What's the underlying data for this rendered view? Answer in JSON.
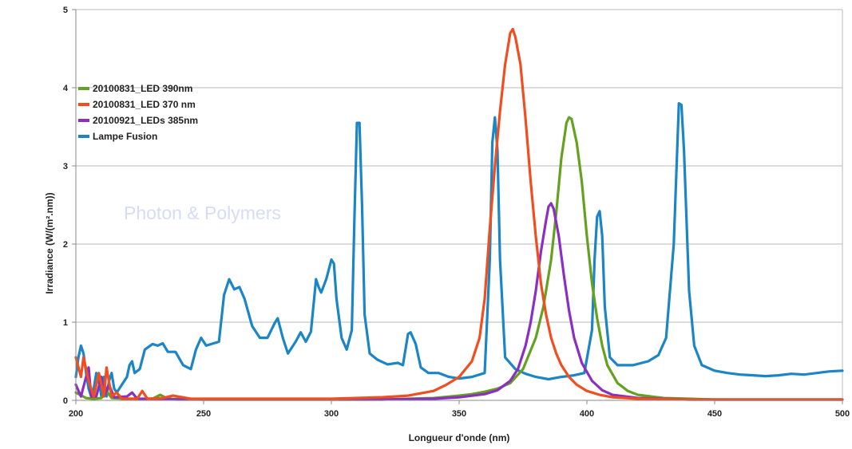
{
  "chart_data": {
    "type": "line",
    "title": "",
    "xlabel": "Longueur d'onde (nm)",
    "ylabel": "Irradiance (W/(m².nm))",
    "xlim": [
      200,
      500
    ],
    "ylim": [
      0,
      5
    ],
    "xticks": [
      200,
      250,
      300,
      350,
      400,
      450,
      500
    ],
    "yticks": [
      0,
      1,
      2,
      3,
      4,
      5
    ],
    "grid": true,
    "legend_position": "top-left",
    "watermark": "Photon & Polymers",
    "series": [
      {
        "name": "20100831_LED 390nm",
        "color": "#64a11f",
        "points": [
          [
            200,
            0.1
          ],
          [
            204,
            0.03
          ],
          [
            207,
            0.02
          ],
          [
            210,
            0.03
          ],
          [
            212,
            0.12
          ],
          [
            214,
            0.03
          ],
          [
            220,
            0.02
          ],
          [
            230,
            0.02
          ],
          [
            233,
            0.07
          ],
          [
            236,
            0.02
          ],
          [
            250,
            0.01
          ],
          [
            280,
            0.01
          ],
          [
            300,
            0.01
          ],
          [
            320,
            0.01
          ],
          [
            330,
            0.02
          ],
          [
            340,
            0.03
          ],
          [
            350,
            0.06
          ],
          [
            355,
            0.08
          ],
          [
            360,
            0.11
          ],
          [
            365,
            0.15
          ],
          [
            370,
            0.22
          ],
          [
            375,
            0.4
          ],
          [
            380,
            0.8
          ],
          [
            383,
            1.2
          ],
          [
            386,
            1.8
          ],
          [
            388,
            2.4
          ],
          [
            390,
            3.1
          ],
          [
            392,
            3.55
          ],
          [
            393,
            3.62
          ],
          [
            394,
            3.6
          ],
          [
            396,
            3.3
          ],
          [
            398,
            2.8
          ],
          [
            400,
            2.1
          ],
          [
            402,
            1.5
          ],
          [
            404,
            1.05
          ],
          [
            406,
            0.7
          ],
          [
            408,
            0.45
          ],
          [
            412,
            0.22
          ],
          [
            416,
            0.12
          ],
          [
            420,
            0.07
          ],
          [
            430,
            0.03
          ],
          [
            440,
            0.02
          ],
          [
            450,
            0.01
          ],
          [
            470,
            0.01
          ],
          [
            500,
            0.01
          ]
        ]
      },
      {
        "name": "20100831_LED 370 nm",
        "color": "#f04e1e",
        "points": [
          [
            200,
            0.55
          ],
          [
            202,
            0.3
          ],
          [
            203,
            0.55
          ],
          [
            205,
            0.25
          ],
          [
            207,
            0.05
          ],
          [
            209,
            0.35
          ],
          [
            211,
            0.05
          ],
          [
            212,
            0.42
          ],
          [
            214,
            0.05
          ],
          [
            216,
            0.1
          ],
          [
            218,
            0.02
          ],
          [
            224,
            0.02
          ],
          [
            226,
            0.12
          ],
          [
            228,
            0.02
          ],
          [
            234,
            0.03
          ],
          [
            238,
            0.06
          ],
          [
            245,
            0.02
          ],
          [
            260,
            0.02
          ],
          [
            280,
            0.02
          ],
          [
            300,
            0.02
          ],
          [
            320,
            0.04
          ],
          [
            330,
            0.06
          ],
          [
            340,
            0.12
          ],
          [
            345,
            0.2
          ],
          [
            350,
            0.3
          ],
          [
            355,
            0.5
          ],
          [
            358,
            0.8
          ],
          [
            360,
            1.3
          ],
          [
            362,
            2.2
          ],
          [
            364,
            3.0
          ],
          [
            366,
            3.7
          ],
          [
            368,
            4.3
          ],
          [
            370,
            4.7
          ],
          [
            371,
            4.75
          ],
          [
            372,
            4.65
          ],
          [
            374,
            4.3
          ],
          [
            376,
            3.6
          ],
          [
            378,
            2.8
          ],
          [
            380,
            2.1
          ],
          [
            382,
            1.5
          ],
          [
            384,
            1.1
          ],
          [
            386,
            0.8
          ],
          [
            388,
            0.6
          ],
          [
            390,
            0.45
          ],
          [
            393,
            0.3
          ],
          [
            396,
            0.2
          ],
          [
            400,
            0.12
          ],
          [
            405,
            0.07
          ],
          [
            410,
            0.04
          ],
          [
            420,
            0.02
          ],
          [
            440,
            0.01
          ],
          [
            500,
            0.01
          ]
        ]
      },
      {
        "name": "20100921_LEDs 385nm",
        "color": "#8b2fc1",
        "points": [
          [
            200,
            0.2
          ],
          [
            202,
            0.05
          ],
          [
            204,
            0.3
          ],
          [
            205,
            0.42
          ],
          [
            206,
            0.05
          ],
          [
            208,
            0.05
          ],
          [
            210,
            0.3
          ],
          [
            211,
            0.05
          ],
          [
            213,
            0.2
          ],
          [
            215,
            0.04
          ],
          [
            220,
            0.05
          ],
          [
            222,
            0.1
          ],
          [
            224,
            0.02
          ],
          [
            240,
            0.01
          ],
          [
            280,
            0.01
          ],
          [
            320,
            0.01
          ],
          [
            340,
            0.02
          ],
          [
            350,
            0.04
          ],
          [
            360,
            0.08
          ],
          [
            365,
            0.13
          ],
          [
            370,
            0.25
          ],
          [
            373,
            0.4
          ],
          [
            376,
            0.7
          ],
          [
            378,
            1.0
          ],
          [
            380,
            1.4
          ],
          [
            382,
            1.9
          ],
          [
            384,
            2.3
          ],
          [
            385,
            2.48
          ],
          [
            386,
            2.52
          ],
          [
            387,
            2.45
          ],
          [
            389,
            2.1
          ],
          [
            391,
            1.6
          ],
          [
            393,
            1.15
          ],
          [
            395,
            0.8
          ],
          [
            398,
            0.48
          ],
          [
            402,
            0.25
          ],
          [
            406,
            0.13
          ],
          [
            410,
            0.07
          ],
          [
            420,
            0.03
          ],
          [
            440,
            0.01
          ],
          [
            500,
            0.01
          ]
        ]
      },
      {
        "name": "Lampe Fusion",
        "color": "#1b85c6",
        "points": [
          [
            200,
            0.3
          ],
          [
            201,
            0.55
          ],
          [
            202,
            0.7
          ],
          [
            203,
            0.6
          ],
          [
            204,
            0.35
          ],
          [
            205,
            0.15
          ],
          [
            206,
            0.05
          ],
          [
            207,
            0.15
          ],
          [
            208,
            0.35
          ],
          [
            209,
            0.25
          ],
          [
            210,
            0.05
          ],
          [
            211,
            0.3
          ],
          [
            212,
            0.05
          ],
          [
            213,
            0.25
          ],
          [
            214,
            0.35
          ],
          [
            215,
            0.15
          ],
          [
            216,
            0.1
          ],
          [
            218,
            0.2
          ],
          [
            220,
            0.3
          ],
          [
            221,
            0.45
          ],
          [
            222,
            0.5
          ],
          [
            223,
            0.35
          ],
          [
            225,
            0.4
          ],
          [
            227,
            0.65
          ],
          [
            230,
            0.72
          ],
          [
            232,
            0.7
          ],
          [
            234,
            0.73
          ],
          [
            236,
            0.62
          ],
          [
            239,
            0.62
          ],
          [
            242,
            0.45
          ],
          [
            245,
            0.4
          ],
          [
            247,
            0.65
          ],
          [
            249,
            0.8
          ],
          [
            251,
            0.7
          ],
          [
            253,
            0.72
          ],
          [
            256,
            0.75
          ],
          [
            258,
            1.35
          ],
          [
            260,
            1.55
          ],
          [
            262,
            1.42
          ],
          [
            264,
            1.45
          ],
          [
            266,
            1.3
          ],
          [
            269,
            0.95
          ],
          [
            272,
            0.8
          ],
          [
            275,
            0.8
          ],
          [
            278,
            1.0
          ],
          [
            279,
            1.05
          ],
          [
            281,
            0.8
          ],
          [
            283,
            0.6
          ],
          [
            286,
            0.75
          ],
          [
            288,
            0.87
          ],
          [
            290,
            0.75
          ],
          [
            292,
            0.88
          ],
          [
            294,
            1.55
          ],
          [
            295,
            1.45
          ],
          [
            296,
            1.38
          ],
          [
            298,
            1.55
          ],
          [
            300,
            1.8
          ],
          [
            301,
            1.75
          ],
          [
            302,
            1.3
          ],
          [
            304,
            0.8
          ],
          [
            306,
            0.65
          ],
          [
            308,
            0.9
          ],
          [
            309,
            2.3
          ],
          [
            310,
            3.55
          ],
          [
            311,
            3.55
          ],
          [
            312,
            2.5
          ],
          [
            313,
            1.1
          ],
          [
            315,
            0.6
          ],
          [
            318,
            0.52
          ],
          [
            322,
            0.46
          ],
          [
            326,
            0.48
          ],
          [
            328,
            0.45
          ],
          [
            330,
            0.85
          ],
          [
            331,
            0.87
          ],
          [
            333,
            0.72
          ],
          [
            335,
            0.42
          ],
          [
            338,
            0.35
          ],
          [
            342,
            0.35
          ],
          [
            346,
            0.3
          ],
          [
            350,
            0.28
          ],
          [
            355,
            0.3
          ],
          [
            360,
            0.35
          ],
          [
            362,
            1.8
          ],
          [
            363,
            3.3
          ],
          [
            364,
            3.62
          ],
          [
            365,
            3.2
          ],
          [
            366,
            1.8
          ],
          [
            368,
            0.55
          ],
          [
            372,
            0.4
          ],
          [
            376,
            0.34
          ],
          [
            380,
            0.3
          ],
          [
            385,
            0.27
          ],
          [
            390,
            0.3
          ],
          [
            395,
            0.32
          ],
          [
            399,
            0.35
          ],
          [
            402,
            0.9
          ],
          [
            403,
            1.8
          ],
          [
            404,
            2.35
          ],
          [
            405,
            2.42
          ],
          [
            406,
            2.1
          ],
          [
            407,
            1.2
          ],
          [
            409,
            0.55
          ],
          [
            412,
            0.45
          ],
          [
            418,
            0.45
          ],
          [
            424,
            0.5
          ],
          [
            428,
            0.58
          ],
          [
            431,
            0.8
          ],
          [
            434,
            2.0
          ],
          [
            436,
            3.8
          ],
          [
            437,
            3.78
          ],
          [
            438,
            3.2
          ],
          [
            440,
            1.4
          ],
          [
            442,
            0.7
          ],
          [
            445,
            0.45
          ],
          [
            450,
            0.38
          ],
          [
            455,
            0.35
          ],
          [
            460,
            0.33
          ],
          [
            465,
            0.32
          ],
          [
            470,
            0.31
          ],
          [
            475,
            0.32
          ],
          [
            480,
            0.34
          ],
          [
            485,
            0.33
          ],
          [
            490,
            0.35
          ],
          [
            495,
            0.37
          ],
          [
            500,
            0.38
          ]
        ]
      }
    ]
  }
}
